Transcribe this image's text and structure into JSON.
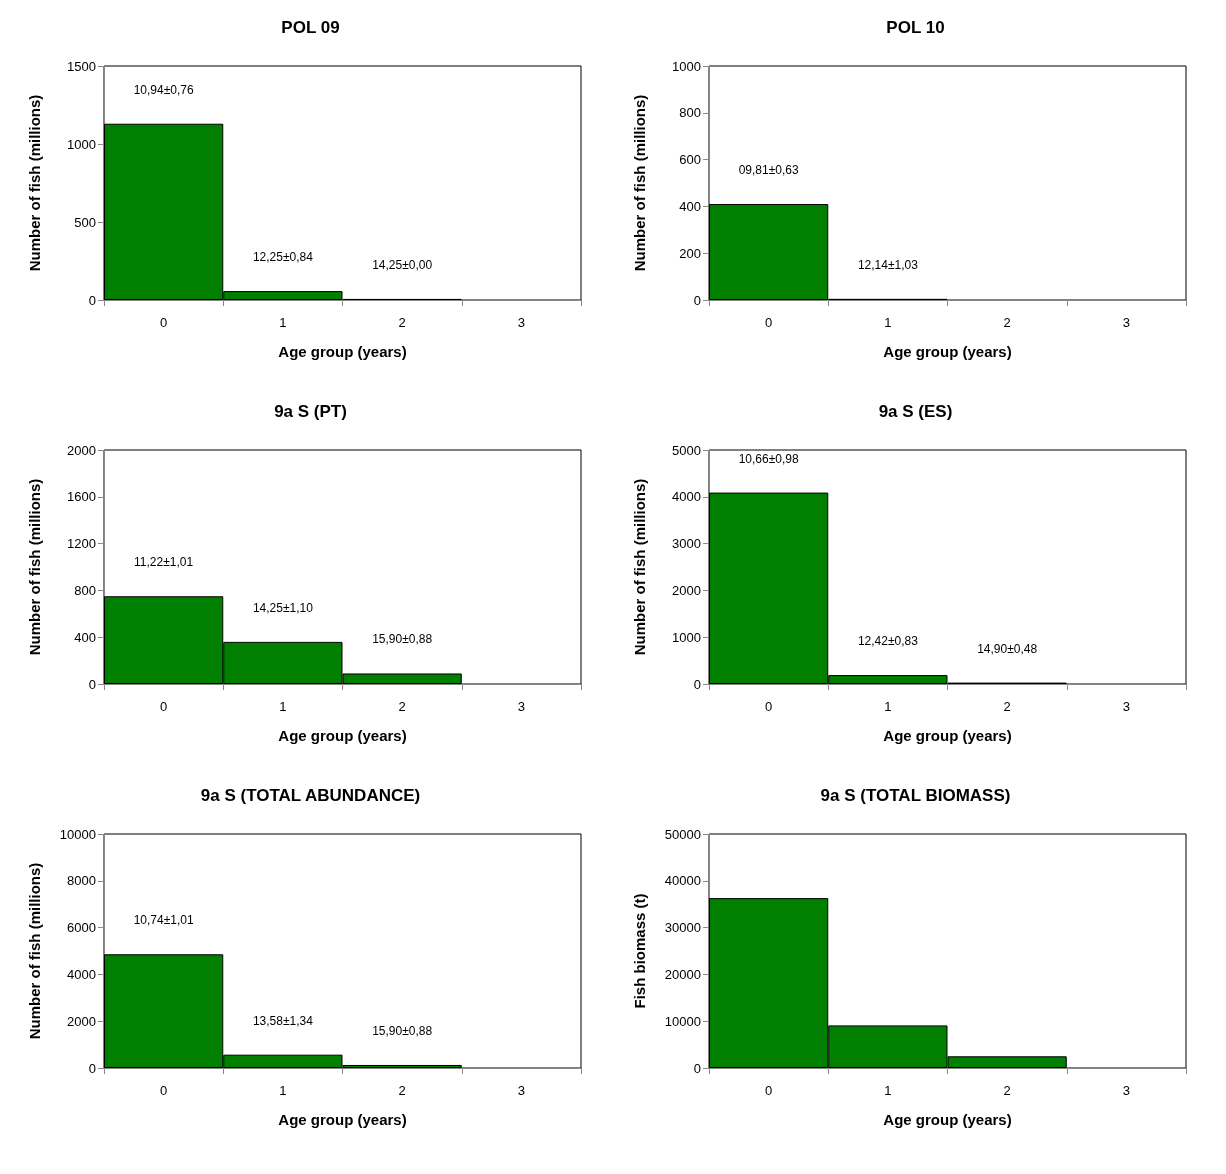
{
  "chart_data": [
    {
      "type": "bar",
      "title": "POL 09",
      "xlabel": "Age group (years)",
      "ylabel": "Number of fish (millions)",
      "categories": [
        "0",
        "1",
        "2",
        "3"
      ],
      "values": [
        1130,
        57,
        7,
        0
      ],
      "color": "#007f00",
      "ylim": [
        0,
        1500
      ],
      "yticks": [
        0,
        500,
        1000,
        1500
      ],
      "grid": false,
      "annotations": [
        "10,94±0,76",
        "12,25±0,84",
        "14,25±0,00"
      ]
    },
    {
      "type": "bar",
      "title": "POL 10",
      "xlabel": "Age group (years)",
      "ylabel": "Number of fish (millions)",
      "categories": [
        "0",
        "1",
        "2",
        "3"
      ],
      "values": [
        410,
        5,
        0,
        0
      ],
      "color": "#007f00",
      "ylim": [
        0,
        1000
      ],
      "yticks": [
        0,
        200,
        400,
        600,
        800,
        1000
      ],
      "grid": false,
      "annotations": [
        "09,81±0,63",
        "12,14±1,03"
      ]
    },
    {
      "type": "bar",
      "title": "9a S (PT)",
      "xlabel": "Age group (years)",
      "ylabel": "Number of fish (millions)",
      "categories": [
        "0",
        "1",
        "2",
        "3"
      ],
      "values": [
        750,
        360,
        90,
        0
      ],
      "color": "#007f00",
      "ylim": [
        0,
        2000
      ],
      "yticks": [
        0,
        400,
        800,
        1200,
        1600,
        2000
      ],
      "grid": false,
      "annotations": [
        "11,22±1,01",
        "14,25±1,10",
        "15,90±0,88"
      ]
    },
    {
      "type": "bar",
      "title": "9a S (ES)",
      "xlabel": "Age group (years)",
      "ylabel": "Number of fish (millions)",
      "categories": [
        "0",
        "1",
        "2",
        "3"
      ],
      "values": [
        4090,
        190,
        30,
        0
      ],
      "color": "#007f00",
      "ylim": [
        0,
        5000
      ],
      "yticks": [
        0,
        1000,
        2000,
        3000,
        4000,
        5000
      ],
      "grid": false,
      "annotations": [
        "10,66±0,98",
        "12,42±0,83",
        "14,90±0,48"
      ]
    },
    {
      "type": "bar",
      "title": "9a S (TOTAL ABUNDANCE)",
      "xlabel": "Age group (years)",
      "ylabel": "Number of fish (millions)",
      "categories": [
        "0",
        "1",
        "2",
        "3"
      ],
      "values": [
        4860,
        570,
        130,
        0
      ],
      "color": "#007f00",
      "ylim": [
        0,
        10000
      ],
      "yticks": [
        0,
        2000,
        4000,
        6000,
        8000,
        10000
      ],
      "grid": false,
      "annotations": [
        "10,74±1,01",
        "13,58±1,34",
        "15,90±0,88"
      ]
    },
    {
      "type": "bar",
      "title": "9a S (TOTAL BIOMASS)",
      "xlabel": "Age group (years)",
      "ylabel": "Fish biomass (t)",
      "categories": [
        "0",
        "1",
        "2",
        "3"
      ],
      "values": [
        36300,
        9100,
        2500,
        0
      ],
      "color": "#007f00",
      "ylim": [
        0,
        50000
      ],
      "yticks": [
        0,
        10000,
        20000,
        30000,
        40000,
        50000
      ],
      "grid": false
    }
  ]
}
